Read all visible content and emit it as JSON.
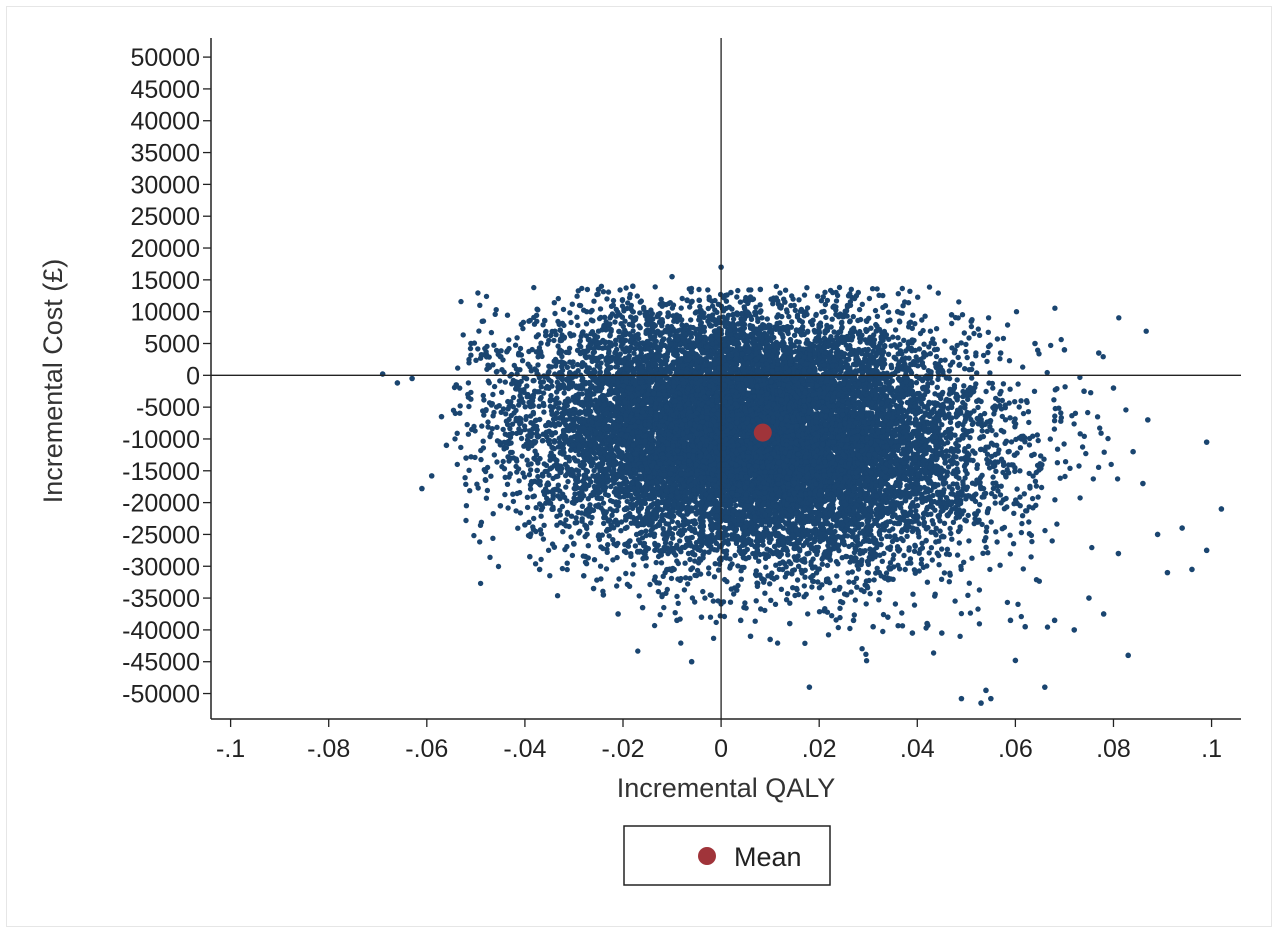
{
  "chart_data": {
    "type": "scatter",
    "title": "",
    "xlabel": "Incremental QALY",
    "ylabel": "Incremental Cost (£)",
    "xlim": [
      -0.104,
      0.106
    ],
    "ylim": [
      -54000,
      53000
    ],
    "x_ticks": [
      {
        "value": -0.1,
        "label": "-.1"
      },
      {
        "value": -0.08,
        "label": "-.08"
      },
      {
        "value": -0.06,
        "label": "-.06"
      },
      {
        "value": -0.04,
        "label": "-.04"
      },
      {
        "value": -0.02,
        "label": "-.02"
      },
      {
        "value": 0,
        "label": "0"
      },
      {
        "value": 0.02,
        "label": ".02"
      },
      {
        "value": 0.04,
        "label": ".04"
      },
      {
        "value": 0.06,
        "label": ".06"
      },
      {
        "value": 0.08,
        "label": ".08"
      },
      {
        "value": 0.1,
        "label": ".1"
      }
    ],
    "y_ticks": [
      {
        "value": 50000,
        "label": "50000"
      },
      {
        "value": 45000,
        "label": "45000"
      },
      {
        "value": 40000,
        "label": "40000"
      },
      {
        "value": 35000,
        "label": "35000"
      },
      {
        "value": 30000,
        "label": "30000"
      },
      {
        "value": 25000,
        "label": "25000"
      },
      {
        "value": 20000,
        "label": "20000"
      },
      {
        "value": 15000,
        "label": "15000"
      },
      {
        "value": 10000,
        "label": "10000"
      },
      {
        "value": 5000,
        "label": "5000"
      },
      {
        "value": 0,
        "label": "0"
      },
      {
        "value": -5000,
        "label": "-5000"
      },
      {
        "value": -10000,
        "label": "-10000"
      },
      {
        "value": -15000,
        "label": "-15000"
      },
      {
        "value": -20000,
        "label": "-20000"
      },
      {
        "value": -25000,
        "label": "-25000"
      },
      {
        "value": -30000,
        "label": "-30000"
      },
      {
        "value": -35000,
        "label": "-35000"
      },
      {
        "value": -40000,
        "label": "-40000"
      },
      {
        "value": -45000,
        "label": "-45000"
      },
      {
        "value": -50000,
        "label": "-50000"
      }
    ],
    "reference_lines": {
      "x": 0,
      "y": 0
    },
    "grid": false,
    "legend": {
      "position": "bottom",
      "entries": [
        {
          "label": "Mean",
          "color": "#a0343a",
          "marker": "circle"
        }
      ]
    },
    "series": [
      {
        "color": "#1a4570",
        "marker": "circle",
        "description_ellipse": {
          "center": [
            0.007,
            -9500
          ],
          "sd": [
            0.022,
            9500
          ],
          "count": 16000
        },
        "points": [
          [
            -0.069,
            200
          ],
          [
            -0.066,
            -1200
          ],
          [
            -0.063,
            -500
          ],
          [
            -0.061,
            -17800
          ],
          [
            -0.059,
            -15800
          ],
          [
            -0.057,
            -6500
          ],
          [
            -0.056,
            -11000
          ],
          [
            -0.054,
            -1500
          ],
          [
            -0.052,
            -13000
          ],
          [
            -0.051,
            5000
          ],
          [
            -0.048,
            -16500
          ],
          [
            -0.045,
            -20500
          ],
          [
            -0.043,
            -15500
          ],
          [
            -0.04,
            -23500
          ],
          [
            -0.039,
            -28500
          ],
          [
            -0.037,
            -30500
          ],
          [
            -0.034,
            -27000
          ],
          [
            -0.033,
            3500
          ],
          [
            -0.03,
            -26500
          ],
          [
            -0.028,
            -31500
          ],
          [
            -0.026,
            -33500
          ],
          [
            -0.025,
            13500
          ],
          [
            -0.024,
            -34500
          ],
          [
            -0.022,
            11000
          ],
          [
            -0.021,
            -37500
          ],
          [
            -0.018,
            14000
          ],
          [
            -0.016,
            -36500
          ],
          [
            -0.012,
            -34500
          ],
          [
            -0.01,
            15500
          ],
          [
            -0.009,
            -38500
          ],
          [
            -0.006,
            -45000
          ],
          [
            -0.004,
            -38000
          ],
          [
            0.0,
            17000
          ],
          [
            0.002,
            13000
          ],
          [
            0.004,
            -38500
          ],
          [
            0.006,
            -41000
          ],
          [
            0.008,
            13500
          ],
          [
            0.01,
            -41500
          ],
          [
            0.013,
            11500
          ],
          [
            0.014,
            -39000
          ],
          [
            0.018,
            -49000
          ],
          [
            0.021,
            -37000
          ],
          [
            0.026,
            12500
          ],
          [
            0.027,
            -38500
          ],
          [
            0.031,
            -39500
          ],
          [
            0.034,
            -38000
          ],
          [
            0.036,
            10000
          ],
          [
            0.039,
            -40500
          ],
          [
            0.042,
            -39000
          ],
          [
            0.045,
            -40500
          ],
          [
            0.047,
            9500
          ],
          [
            0.049,
            -50800
          ],
          [
            0.051,
            8500
          ],
          [
            0.053,
            -51500
          ],
          [
            0.054,
            -49500
          ],
          [
            0.055,
            -50800
          ],
          [
            0.057,
            3500
          ],
          [
            0.059,
            -38500
          ],
          [
            0.06,
            -44800
          ],
          [
            0.062,
            -39500
          ],
          [
            0.064,
            5000
          ],
          [
            0.066,
            -49000
          ],
          [
            0.068,
            -38500
          ],
          [
            0.07,
            4000
          ],
          [
            0.072,
            -40000
          ],
          [
            0.074,
            -2500
          ],
          [
            0.075,
            -35000
          ],
          [
            0.077,
            3500
          ],
          [
            0.078,
            -37500
          ],
          [
            0.08,
            -2000
          ],
          [
            0.081,
            -28000
          ],
          [
            0.083,
            -44000
          ],
          [
            0.084,
            -12000
          ],
          [
            0.086,
            -17000
          ],
          [
            0.087,
            -7000
          ],
          [
            0.089,
            -25000
          ],
          [
            0.091,
            -31000
          ],
          [
            0.094,
            -24000
          ],
          [
            0.096,
            -30500
          ],
          [
            0.099,
            -10500
          ],
          [
            0.099,
            -27500
          ],
          [
            0.102,
            -21000
          ]
        ]
      },
      {
        "name": "Mean",
        "color": "#a0343a",
        "marker": "circle",
        "points": [
          [
            0.0085,
            -9000
          ]
        ]
      }
    ]
  }
}
